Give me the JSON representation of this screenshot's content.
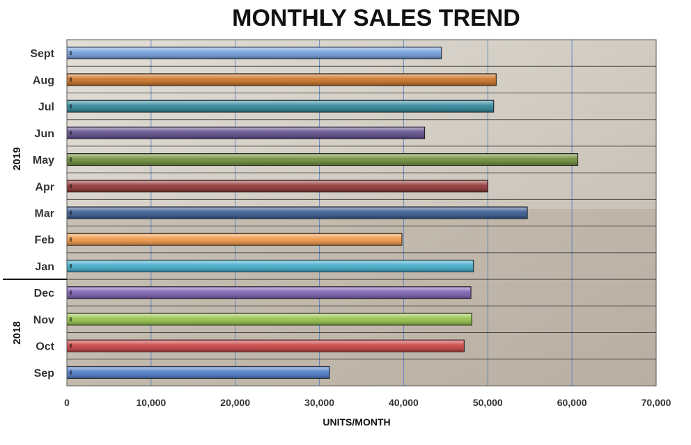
{
  "chart_data": {
    "type": "bar",
    "orientation": "horizontal",
    "title": "MONTHLY SALES TREND",
    "xlabel": "UNITS/MONTH",
    "ylabel": "",
    "xlim": [
      0,
      70000
    ],
    "xticks": [
      0,
      10000,
      20000,
      30000,
      40000,
      50000,
      60000,
      70000
    ],
    "xtick_labels": [
      "0",
      "10,000",
      "20,000",
      "30,000",
      "40,000",
      "50,000",
      "60,000",
      "70,000"
    ],
    "grid": true,
    "legend": "none",
    "categories": [
      "Sept",
      "Aug",
      "Jul",
      "Jun",
      "May",
      "Apr",
      "Mar",
      "Feb",
      "Jan",
      "Dec",
      "Nov",
      "Oct",
      "Sep"
    ],
    "values": [
      44500,
      51000,
      50700,
      42500,
      60700,
      50000,
      54700,
      39800,
      48300,
      48000,
      48100,
      47200,
      31200
    ],
    "colors": [
      "#6f9bd9",
      "#c86f22",
      "#2d8599",
      "#5c4a88",
      "#6b8a36",
      "#8e3232",
      "#33588f",
      "#ee9544",
      "#3fa9c8",
      "#7b5cb0",
      "#93c048",
      "#c84040",
      "#4b79c5"
    ],
    "groups": [
      {
        "label": "2019",
        "months": [
          "Sept",
          "Aug",
          "Jul",
          "Jun",
          "May",
          "Apr",
          "Mar",
          "Feb",
          "Jan"
        ]
      },
      {
        "label": "2018",
        "months": [
          "Dec",
          "Nov",
          "Oct",
          "Sep"
        ]
      }
    ]
  }
}
